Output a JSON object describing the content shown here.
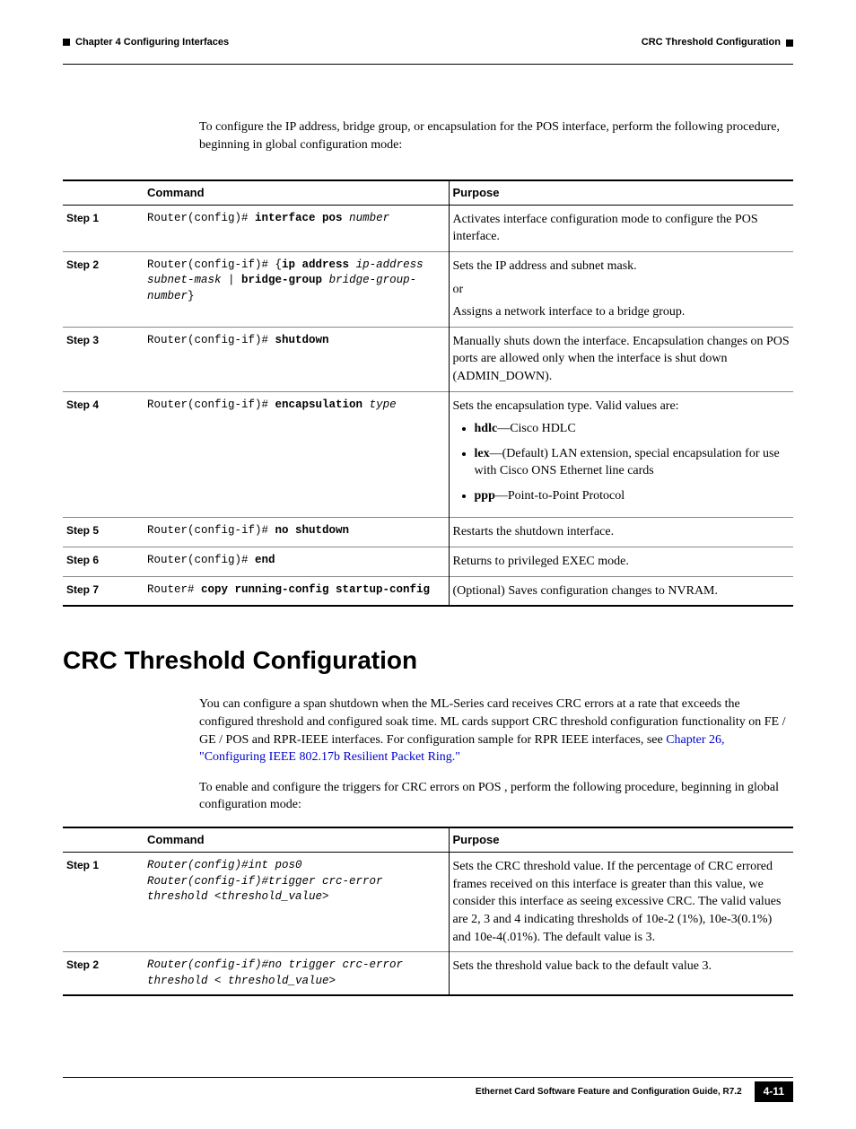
{
  "header": {
    "chapter": "Chapter 4 Configuring Interfaces",
    "section": "CRC Threshold Configuration"
  },
  "intro1": "To configure the IP address, bridge group, or encapsulation for the POS interface, perform the following procedure, beginning in global configuration mode:",
  "table1": {
    "head_command": "Command",
    "head_purpose": "Purpose",
    "rows": [
      {
        "step": "Step 1",
        "cmd_html": "Router(config)# <span class='bold'>interface pos</span> <span class='ital'>number</span>",
        "purpose_html": "Activates interface configuration mode to configure the POS interface."
      },
      {
        "step": "Step 2",
        "cmd_html": "Router(config-if)# {<span class='bold'>ip address</span> <span class='ital'>ip-address subnet-mask</span> | <span class='bold'>bridge-group</span> <span class='ital'>bridge-group-number</span>}",
        "purpose_html": "<p>Sets the IP address and subnet mask.</p><p>or</p><p>Assigns a network interface to a bridge group.</p>"
      },
      {
        "step": "Step 3",
        "cmd_html": "Router(config-if)# <span class='bold'>shutdown</span>",
        "purpose_html": "Manually shuts down the interface. Encapsulation changes on POS ports are allowed only when the interface is shut down (ADMIN_DOWN)."
      },
      {
        "step": "Step 4",
        "cmd_html": "Router(config-if)# <span class='bold'>encapsulation</span> <span class='ital'>type</span>",
        "purpose_html": "<p>Sets the encapsulation type. Valid values are:</p><ul><li><span class='term'>hdlc</span>—Cisco HDLC</li><li><span class='term'>lex</span>—(Default) LAN extension, special encapsulation for use with Cisco ONS Ethernet line cards</li><li><span class='term'>ppp</span>—Point-to-Point Protocol</li></ul>"
      },
      {
        "step": "Step 5",
        "cmd_html": "Router(config-if)# <span class='bold'>no shutdown</span>",
        "purpose_html": "Restarts the shutdown interface."
      },
      {
        "step": "Step 6",
        "cmd_html": "Router(config)# <span class='bold'>end</span>",
        "purpose_html": "Returns to privileged EXEC mode."
      },
      {
        "step": "Step 7",
        "cmd_html": "Router# <span class='bold'>copy running-config startup-config</span>",
        "purpose_html": "(Optional) Saves configuration changes to NVRAM."
      }
    ]
  },
  "heading2": "CRC Threshold Configuration",
  "para2a_pre": "You can configure a span shutdown when the ML-Series card receives CRC errors at a rate that exceeds the configured threshold and configured soak time. ML cards support CRC threshold configuration functionality on FE / GE / POS  and  RPR-IEEE interfaces.  For configuration sample for RPR IEEE interfaces, see ",
  "para2a_link": "Chapter 26, \"Configuring IEEE 802.17b Resilient Packet Ring.\"",
  "para2b": "To enable and configure the triggers for CRC errors  on POS , perform the following procedure, beginning in global configuration mode:",
  "table2": {
    "head_command": "Command",
    "head_purpose": "Purpose",
    "rows": [
      {
        "step": "Step 1",
        "cmd_html": "<span class='ital'>Router(config)#int pos0<br>Router(config-if)#trigger crc-error threshold &lt;threshold_value&gt;</span>",
        "purpose_html": "Sets the CRC threshold value. If the percentage of CRC errored frames received on this interface is greater than this value, we consider this interface as seeing excessive CRC. The valid values are 2, 3 and 4 indicating thresholds of 10e-2 (1%), 10e-3(0.1%) and 10e-4(.01%). The default value is 3."
      },
      {
        "step": "Step 2",
        "cmd_html": "<span class='ital'>Router(config-if)#no trigger crc-error threshold &lt; threshold_value&gt;</span>",
        "purpose_html": "Sets the threshold value back to the default value 3."
      }
    ]
  },
  "footer": {
    "guide": "Ethernet Card Software Feature and Configuration Guide, R7.2",
    "page": "4-11"
  }
}
